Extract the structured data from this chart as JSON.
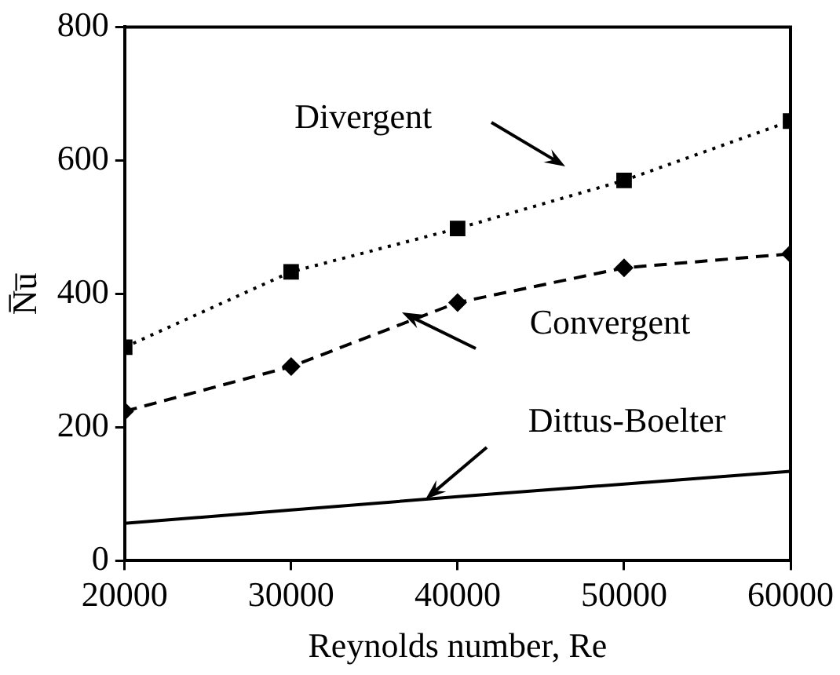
{
  "chart_data": {
    "type": "line",
    "xlabel": "Reynolds number, Re",
    "ylabel": "N̅u̅",
    "x": [
      20000,
      30000,
      40000,
      50000,
      60000
    ],
    "series": [
      {
        "color": "#000000",
        "marker": "square",
        "line_style": "dotted",
        "values": [
          320,
          433,
          498,
          570,
          659
        ]
      },
      {
        "color": "#000000",
        "marker": "diamond",
        "line_style": "dashed",
        "values": [
          224,
          291,
          387,
          439,
          460
        ]
      },
      {
        "color": "#000000",
        "marker": "none",
        "line_style": "solid",
        "values": [
          56,
          76,
          96,
          115,
          134
        ]
      }
    ],
    "xlim": [
      20000,
      60000
    ],
    "xticks": [
      20000,
      30000,
      40000,
      50000,
      60000
    ],
    "ylim": [
      0,
      800
    ],
    "yticks": [
      0,
      200,
      400,
      600,
      800
    ],
    "grid": false,
    "legend": false,
    "annotations": [
      "Divergent",
      "Convergent",
      {
        "text": "Dittus-Boelter",
        "x": 38100,
        "y": 92
      }
    ]
  }
}
